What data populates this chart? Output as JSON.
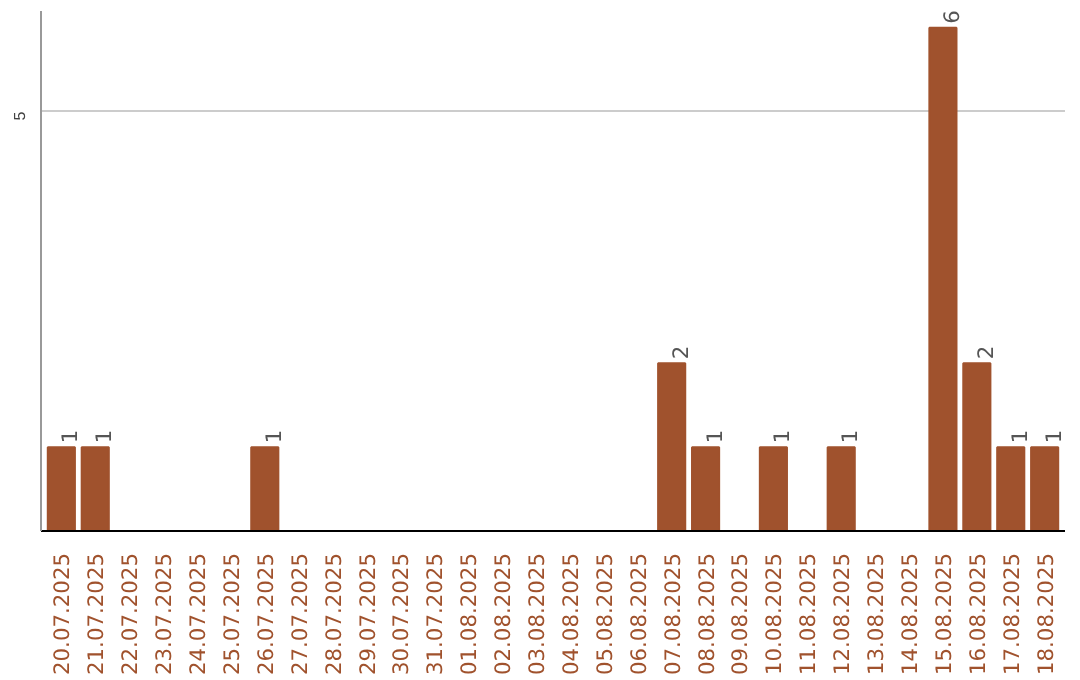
{
  "chart_data": {
    "type": "bar",
    "categories": [
      "20.07.2025",
      "21.07.2025",
      "22.07.2025",
      "23.07.2025",
      "24.07.2025",
      "25.07.2025",
      "26.07.2025",
      "27.07.2025",
      "28.07.2025",
      "29.07.2025",
      "30.07.2025",
      "31.07.2025",
      "01.08.2025",
      "02.08.2025",
      "03.08.2025",
      "04.08.2025",
      "05.08.2025",
      "06.08.2025",
      "07.08.2025",
      "08.08.2025",
      "09.08.2025",
      "10.08.2025",
      "11.08.2025",
      "12.08.2025",
      "13.08.2025",
      "14.08.2025",
      "15.08.2025",
      "16.08.2025",
      "17.08.2025",
      "18.08.2025"
    ],
    "values": [
      1,
      1,
      0,
      0,
      0,
      0,
      1,
      0,
      0,
      0,
      0,
      0,
      0,
      0,
      0,
      0,
      0,
      0,
      2,
      1,
      0,
      1,
      0,
      1,
      0,
      0,
      6,
      2,
      1,
      1
    ],
    "value_labels": [
      "1",
      "1",
      null,
      null,
      null,
      null,
      "1",
      null,
      null,
      null,
      null,
      null,
      null,
      null,
      null,
      null,
      null,
      null,
      "2",
      "1",
      null,
      "1",
      null,
      "1",
      null,
      null,
      "6",
      "2",
      "1",
      "1"
    ],
    "color": "#a0522d",
    "ylim": [
      0,
      6.2
    ],
    "yticks": [
      5
    ],
    "grid": "y"
  }
}
